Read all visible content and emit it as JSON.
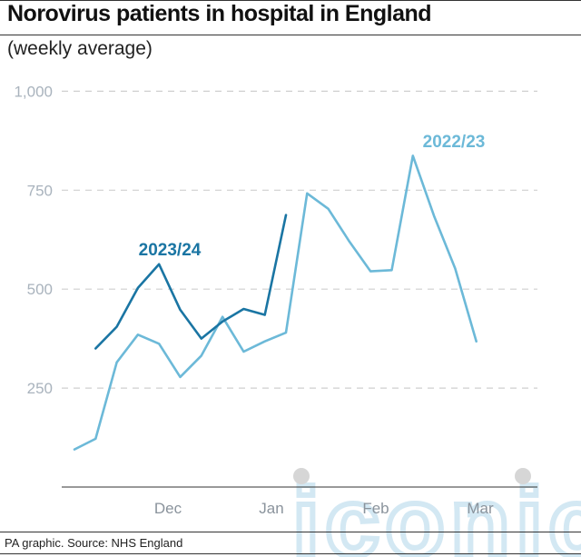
{
  "title": "Norovirus patients in hospital in England",
  "subtitle": "(weekly average)",
  "source": "PA graphic. Source: NHS England",
  "watermark": "iconic",
  "colors": {
    "series_2023_24": "#1a75a3",
    "series_2022_23": "#6cb9d8",
    "grid": "#cfcfcf",
    "axis": "#333333",
    "watermark": "#cfe6f2",
    "watermark_dot": "#d6d6d6"
  },
  "chart_data": {
    "type": "line",
    "title": "Norovirus patients in hospital in England",
    "subtitle": "(weekly average)",
    "xlabel": "",
    "ylabel": "",
    "x_ticks": [
      "Dec",
      "Jan",
      "Feb",
      "Mar"
    ],
    "y_ticks": [
      "1,000",
      "750",
      "500",
      "250"
    ],
    "ylim": [
      0,
      1000
    ],
    "grid": true,
    "series": [
      {
        "name": "2022/23",
        "color": "#6cb9d8",
        "values": [
          95,
          122,
          315,
          385,
          362,
          278,
          332,
          430,
          342,
          368,
          390,
          742,
          703,
          620,
          545,
          548,
          837,
          685,
          552,
          368
        ]
      },
      {
        "name": "2023/24",
        "color": "#1a75a3",
        "values": [
          null,
          350,
          405,
          503,
          563,
          448,
          375,
          418,
          450,
          435,
          687,
          null,
          null,
          null,
          null,
          null,
          null,
          null,
          null,
          null
        ]
      }
    ]
  }
}
